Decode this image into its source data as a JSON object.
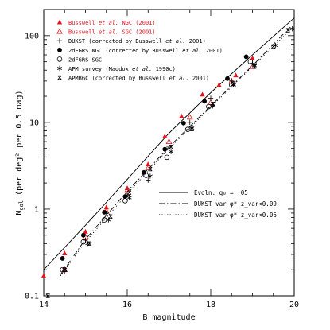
{
  "chart_data": {
    "type": "scatter",
    "xlabel": "B magnitude",
    "ylabel_main": "N",
    "ylabel_sub": "gal",
    "ylabel_rest": " (per deg² per 0.5 mag)",
    "xlim": [
      14,
      20
    ],
    "ylim": [
      0.1,
      200
    ],
    "yscale": "log",
    "x_ticks": [
      14,
      16,
      18,
      20
    ],
    "y_ticks": [
      0.1,
      1,
      10,
      100
    ],
    "grid": false,
    "legend_position": "top-left",
    "legend": [
      {
        "key": "b_ngc",
        "marker": "filled-triangle",
        "color": "#e8141c",
        "pre": "Busswell ",
        "ital": "et al.",
        "post": " NGC (2001)"
      },
      {
        "key": "b_sgc",
        "marker": "open-triangle",
        "color": "#e8141c",
        "pre": "Busswell ",
        "ital": "et al.",
        "post": " SGC (2001)"
      },
      {
        "key": "dukst",
        "marker": "plus",
        "color": "#000000",
        "pre": "DUKST (corrected by Busswell ",
        "ital": "et al.",
        "post": " 2001)"
      },
      {
        "key": "d2f_ngc",
        "marker": "filled-circle",
        "color": "#000000",
        "pre": "2dFGRS NGC (corrected by Busswell ",
        "ital": "et al.",
        "post": " 2001)"
      },
      {
        "key": "d2f_sgc",
        "marker": "open-circle",
        "color": "#000000",
        "pre": "2dFGRS SGC",
        "ital": "",
        "post": ""
      },
      {
        "key": "apm",
        "marker": "star",
        "color": "#000000",
        "pre": "APM survey (Maddox ",
        "ital": "et al.",
        "post": " 1990c)"
      },
      {
        "key": "apmbgc",
        "marker": "box-x",
        "color": "#000000",
        "pre": "APMBGC (corrected by Busswell ",
        "ital": "et al.",
        "post": " 2001)"
      }
    ],
    "line_legend": [
      {
        "key": "evol",
        "style": "solid",
        "label": "Evoln. q₀ = .05"
      },
      {
        "key": "var09",
        "style": "dashdot",
        "label": "DUKST var φ* z_var<0.09"
      },
      {
        "key": "var06",
        "style": "dotted",
        "label": "DUKST var φ* z_var<0.06"
      }
    ],
    "lines": [
      {
        "key": "evol",
        "style": "solid",
        "points": [
          [
            14,
            0.2
          ],
          [
            15,
            0.65
          ],
          [
            16,
            2.2
          ],
          [
            17,
            7.5
          ],
          [
            18,
            22
          ],
          [
            19,
            60
          ],
          [
            20,
            160
          ]
        ]
      },
      {
        "key": "var09",
        "style": "dashdot",
        "points": [
          [
            14.4,
            0.175
          ],
          [
            15,
            0.45
          ],
          [
            16,
            1.6
          ],
          [
            17,
            5.2
          ],
          [
            18,
            15.5
          ],
          [
            19,
            45
          ],
          [
            19.9,
            125
          ]
        ]
      },
      {
        "key": "var06",
        "style": "dotted",
        "points": [
          [
            14.4,
            0.17
          ],
          [
            15,
            0.42
          ],
          [
            16,
            1.5
          ],
          [
            17,
            5.0
          ],
          [
            18,
            15
          ],
          [
            19,
            44
          ],
          [
            19.9,
            115
          ]
        ]
      }
    ],
    "series": [
      {
        "key": "b_ngc",
        "name": "Busswell et al. NGC (2001)",
        "points": [
          [
            14,
            0.17
          ],
          [
            14.5,
            0.31
          ],
          [
            15,
            0.55
          ],
          [
            15.5,
            1.05
          ],
          [
            16,
            1.75
          ],
          [
            16.5,
            3.3
          ],
          [
            16.9,
            6.9
          ],
          [
            17.3,
            11.8
          ],
          [
            17.8,
            21
          ],
          [
            18.2,
            27
          ],
          [
            18.6,
            35
          ],
          [
            19,
            55
          ]
        ]
      },
      {
        "key": "b_sgc",
        "name": "Busswell et al. SGC (2001)",
        "points": [
          [
            14.5,
            0.2
          ],
          [
            15,
            0.48
          ],
          [
            15.5,
            0.95
          ],
          [
            16,
            1.65
          ],
          [
            16.5,
            3.0
          ],
          [
            17,
            6.0
          ],
          [
            17.5,
            11.5
          ],
          [
            18,
            17
          ],
          [
            18.5,
            30
          ],
          [
            19,
            44
          ]
        ]
      },
      {
        "key": "dukst",
        "name": "DUKST (corrected by Busswell et al. 2001)",
        "points": [
          [
            14.5,
            0.19
          ],
          [
            15,
            0.44
          ],
          [
            15.5,
            0.9
          ],
          [
            16,
            1.45
          ],
          [
            16.5,
            2.15
          ],
          [
            17,
            5.2
          ],
          [
            17.5,
            10
          ],
          [
            18,
            19
          ],
          [
            18.5,
            30
          ],
          [
            19,
            48
          ]
        ]
      },
      {
        "key": "d2f_ngc",
        "name": "2dFGRS NGC (corrected by Busswell et al. 2001)",
        "points": [
          [
            14.45,
            0.27
          ],
          [
            14.95,
            0.5
          ],
          [
            15.45,
            0.92
          ],
          [
            15.95,
            1.4
          ],
          [
            16.4,
            2.65
          ],
          [
            16.9,
            4.9
          ],
          [
            17.35,
            9.8
          ],
          [
            17.85,
            17.5
          ],
          [
            18.4,
            32
          ],
          [
            18.85,
            57
          ]
        ]
      },
      {
        "key": "d2f_sgc",
        "name": "2dFGRS SGC",
        "points": [
          [
            14.45,
            0.2
          ],
          [
            14.95,
            0.42
          ],
          [
            15.45,
            0.75
          ],
          [
            15.95,
            1.25
          ],
          [
            16.45,
            2.45
          ],
          [
            16.95,
            3.95
          ],
          [
            17.45,
            8.3
          ],
          [
            17.95,
            15.2
          ],
          [
            18.5,
            27
          ],
          [
            18.95,
            50
          ]
        ]
      },
      {
        "key": "apm",
        "name": "APM survey (Maddox et al. 1990c)",
        "points": [
          [
            14.5,
            0.2
          ],
          [
            15.05,
            0.4
          ],
          [
            15.55,
            0.75
          ],
          [
            16.05,
            1.35
          ],
          [
            16.55,
            2.4
          ],
          [
            17.05,
            4.6
          ],
          [
            17.55,
            8.6
          ],
          [
            18.05,
            15.5
          ],
          [
            18.55,
            27
          ],
          [
            19.05,
            45
          ],
          [
            19.55,
            77
          ],
          [
            19.95,
            120
          ]
        ]
      },
      {
        "key": "apmbgc",
        "name": "APMBGC (corrected by Busswell et al. 2001)",
        "points": [
          [
            14.1,
            0.1
          ],
          [
            14.5,
            0.2
          ],
          [
            15.1,
            0.4
          ],
          [
            15.6,
            0.82
          ],
          [
            16.05,
            1.55
          ],
          [
            16.55,
            2.9
          ],
          [
            17.05,
            5.2
          ],
          [
            17.55,
            8.4
          ],
          [
            18.05,
            16.3
          ],
          [
            18.55,
            28
          ],
          [
            19.05,
            44
          ],
          [
            19.5,
            75
          ],
          [
            19.85,
            115
          ]
        ]
      }
    ]
  }
}
